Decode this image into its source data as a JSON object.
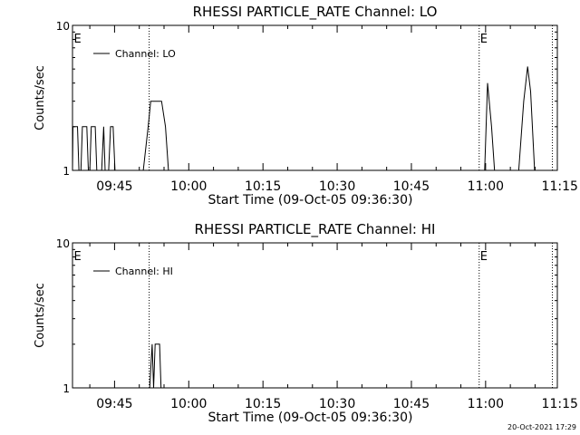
{
  "footer": {
    "timestamp": "20-Oct-2021 17:29"
  },
  "chart_data": [
    {
      "type": "line",
      "title": "RHESSI PARTICLE_RATE Channel: LO",
      "xlabel": "Start Time (09-Oct-05 09:36:30)",
      "ylabel": "Counts/sec",
      "x_unit": "minutes since 09:36:30",
      "xlim": [
        0,
        98
      ],
      "ylim": [
        1,
        10
      ],
      "y_scale": "log",
      "x_ticks": [
        {
          "x": 8.5,
          "label": "09:45"
        },
        {
          "x": 23.5,
          "label": "10:00"
        },
        {
          "x": 38.5,
          "label": "10:15"
        },
        {
          "x": 53.5,
          "label": "10:30"
        },
        {
          "x": 68.5,
          "label": "10:45"
        },
        {
          "x": 83.5,
          "label": "11:00"
        },
        {
          "x": 98.5,
          "label": "11:15"
        }
      ],
      "y_ticks": [
        {
          "y": 1,
          "label": "1"
        },
        {
          "y": 10,
          "label": "10"
        }
      ],
      "legend": {
        "position": "top-left",
        "entries": [
          "Channel: LO"
        ]
      },
      "markers": [
        {
          "x": 0.1,
          "label": "E",
          "line": false
        },
        {
          "x": 15.5,
          "label": "",
          "line": true
        },
        {
          "x": 82.2,
          "label": "E",
          "line": true
        },
        {
          "x": 97.0,
          "label": "",
          "line": true
        }
      ],
      "series": [
        {
          "name": "Channel: LO",
          "points": [
            [
              0,
              1
            ],
            [
              0.1,
              2
            ],
            [
              1,
              2
            ],
            [
              1.3,
              1
            ],
            [
              1.7,
              1
            ],
            [
              2,
              2
            ],
            [
              2.9,
              2
            ],
            [
              3.2,
              1
            ],
            [
              3.5,
              1
            ],
            [
              3.8,
              2
            ],
            [
              4.6,
              2
            ],
            [
              4.9,
              1
            ],
            [
              5.9,
              1
            ],
            [
              6.3,
              2
            ],
            [
              6.6,
              1
            ],
            [
              7.3,
              1
            ],
            [
              7.7,
              2
            ],
            [
              8.2,
              2
            ],
            [
              8.6,
              1
            ],
            [
              14.3,
              1
            ],
            [
              15.3,
              2
            ],
            [
              15.8,
              3
            ],
            [
              18,
              3
            ],
            [
              18.8,
              2
            ],
            [
              19.4,
              1
            ],
            [
              83.3,
              1
            ],
            [
              83.9,
              4
            ],
            [
              84.7,
              2
            ],
            [
              85.3,
              1
            ],
            [
              90.2,
              1
            ],
            [
              91.2,
              3
            ],
            [
              92,
              5.2
            ],
            [
              92.6,
              3.5
            ],
            [
              93.4,
              1
            ]
          ]
        }
      ]
    },
    {
      "type": "line",
      "title": "RHESSI PARTICLE_RATE Channel: HI",
      "xlabel": "Start Time (09-Oct-05 09:36:30)",
      "ylabel": "Counts/sec",
      "x_unit": "minutes since 09:36:30",
      "xlim": [
        0,
        98
      ],
      "ylim": [
        1,
        10
      ],
      "y_scale": "log",
      "x_ticks": [
        {
          "x": 8.5,
          "label": "09:45"
        },
        {
          "x": 23.5,
          "label": "10:00"
        },
        {
          "x": 38.5,
          "label": "10:15"
        },
        {
          "x": 53.5,
          "label": "10:30"
        },
        {
          "x": 68.5,
          "label": "10:45"
        },
        {
          "x": 83.5,
          "label": "11:00"
        },
        {
          "x": 98.5,
          "label": "11:15"
        }
      ],
      "y_ticks": [
        {
          "y": 1,
          "label": "1"
        },
        {
          "y": 10,
          "label": "10"
        }
      ],
      "legend": {
        "position": "top-left",
        "entries": [
          "Channel: HI"
        ]
      },
      "markers": [
        {
          "x": 0.1,
          "label": "E",
          "line": false
        },
        {
          "x": 15.5,
          "label": "",
          "line": true
        },
        {
          "x": 82.2,
          "label": "E",
          "line": true
        },
        {
          "x": 97.0,
          "label": "",
          "line": true
        }
      ],
      "series": [
        {
          "name": "Channel: HI",
          "points": [
            [
              0,
              1
            ],
            [
              15.6,
              1
            ],
            [
              16.1,
              2
            ],
            [
              16.4,
              1
            ],
            [
              16.7,
              2
            ],
            [
              17.6,
              2
            ],
            [
              17.9,
              1
            ]
          ]
        }
      ]
    }
  ]
}
